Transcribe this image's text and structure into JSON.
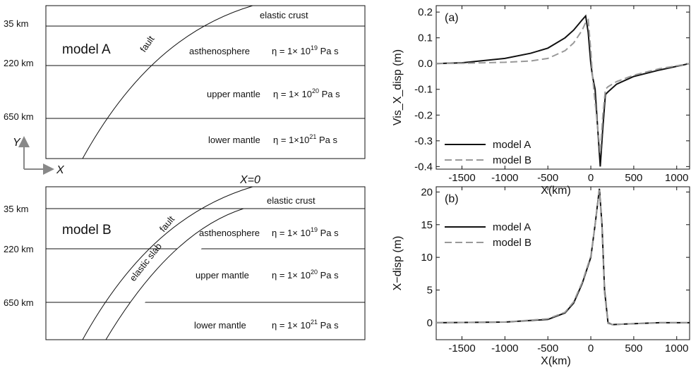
{
  "diagram_a": {
    "label": "model A",
    "fault": "fault",
    "crust": "elastic crust",
    "depths": [
      "35 km",
      "220 km",
      "650 km"
    ],
    "layers": [
      {
        "name": "asthenosphere",
        "prefix": "η = 1× 10",
        "exponent": "19",
        "unit": "Pa s"
      },
      {
        "name": "upper mantle",
        "prefix": "η = 1× 10",
        "exponent": "20",
        "unit": "Pa s"
      },
      {
        "name": "lower mantle",
        "prefix": "η = 1×10",
        "exponent": "21",
        "unit": "Pa s"
      }
    ],
    "axis_y": "Y",
    "axis_x": "X"
  },
  "x0_label": "X=0",
  "diagram_b": {
    "label": "model B",
    "fault": "fault",
    "slab": "elastic slab",
    "crust": "elastic crust",
    "depths": [
      "35 km",
      "220 km",
      "650 km"
    ],
    "layers": [
      {
        "name": "asthenosphere",
        "prefix": "η = 1× 10",
        "exponent": "19",
        "unit": "Pa s"
      },
      {
        "name": "upper mantle",
        "prefix": "η = 1× 10",
        "exponent": "20",
        "unit": "Pa s"
      },
      {
        "name": "lower mantle",
        "prefix": "η = 1× 10",
        "exponent": "21",
        "unit": "Pa s"
      }
    ]
  },
  "chart_data": [
    {
      "type": "line",
      "panel": "(a)",
      "x_label": "X(km)",
      "y_label": "Vis_X_disp (m)",
      "x": [
        -1800,
        -1500,
        -1000,
        -700,
        -500,
        -300,
        -200,
        -100,
        -60,
        -30,
        0,
        20,
        50,
        80,
        110,
        140,
        170,
        200,
        300,
        500,
        800,
        1150
      ],
      "series": [
        {
          "name": "model A",
          "color": "#111111",
          "dash": false,
          "values": [
            0,
            0.003,
            0.02,
            0.04,
            0.06,
            0.1,
            0.13,
            0.17,
            0.185,
            0.12,
            0,
            -0.05,
            -0.1,
            -0.25,
            -0.4,
            -0.25,
            -0.12,
            -0.11,
            -0.08,
            -0.05,
            -0.025,
            0
          ]
        },
        {
          "name": "model B",
          "color": "#999999",
          "dash": true,
          "values": [
            0,
            0.001,
            0.005,
            0.01,
            0.02,
            0.05,
            0.08,
            0.13,
            0.16,
            0.17,
            0.05,
            -0.05,
            -0.15,
            -0.25,
            -0.35,
            -0.2,
            -0.1,
            -0.09,
            -0.07,
            -0.045,
            -0.02,
            0
          ]
        }
      ],
      "xlim": [
        -1800,
        1150
      ],
      "ylim": [
        -0.41,
        0.225
      ],
      "xticks": [
        -1500,
        -1000,
        -500,
        0,
        500,
        1000
      ],
      "yticks": [
        -0.4,
        -0.3,
        -0.2,
        -0.1,
        {
          "value": 0,
          "label": "0.0"
        },
        0.1,
        0.2
      ],
      "legend": "lower left"
    },
    {
      "type": "line",
      "panel": "(b)",
      "x_label": "X(km)",
      "y_label": "X−disp (m)",
      "x": [
        -1800,
        -1000,
        -500,
        -300,
        -200,
        -100,
        0,
        50,
        100,
        130,
        160,
        200,
        250,
        400,
        800,
        1150
      ],
      "series": [
        {
          "name": "model A",
          "color": "#111111",
          "dash": false,
          "values": [
            0,
            0.1,
            0.5,
            1.5,
            3,
            6,
            10,
            15,
            20.5,
            15,
            5,
            0,
            -0.3,
            -0.2,
            0,
            0
          ]
        },
        {
          "name": "model B",
          "color": "#999999",
          "dash": true,
          "values": [
            0,
            0.1,
            0.6,
            1.6,
            3.2,
            6.2,
            10.2,
            15,
            20.3,
            14.5,
            4.5,
            -0.1,
            -0.3,
            -0.2,
            0,
            0
          ]
        }
      ],
      "xlim": [
        -1800,
        1150
      ],
      "ylim": [
        -2.6,
        20.8
      ],
      "xticks": [
        -1500,
        -1000,
        -500,
        0,
        500,
        1000
      ],
      "yticks": [
        0,
        5,
        10,
        15,
        20
      ],
      "legend": "upper left"
    }
  ]
}
